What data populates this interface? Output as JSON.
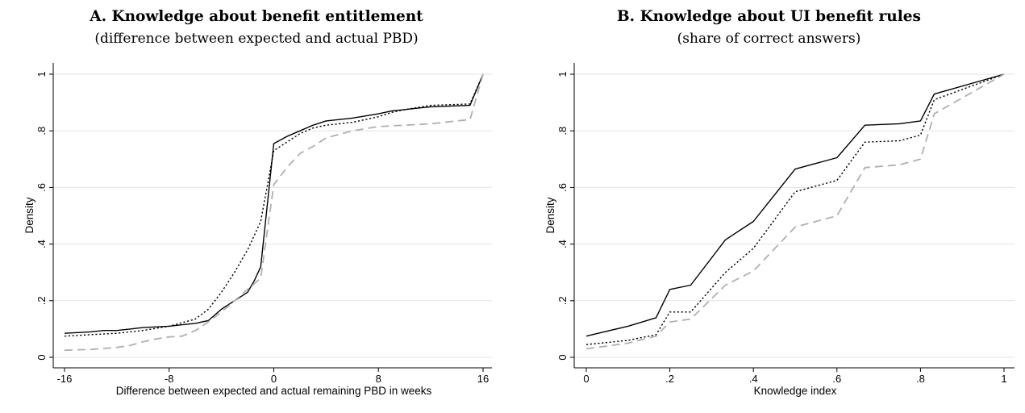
{
  "chart_data": [
    {
      "type": "line",
      "title": "A. Knowledge about benefit entitlement",
      "subtitle": "(difference between expected and actual PBD)",
      "xlabel": "Difference between expected and actual remaining PBD in weeks",
      "ylabel": "Density",
      "xlim": [
        -16,
        16
      ],
      "ylim": [
        0,
        1
      ],
      "xticks": [
        -16,
        -8,
        0,
        8,
        16
      ],
      "xtick_labels": [
        "-16",
        "-8",
        "0",
        "8",
        "16"
      ],
      "yticks": [
        0,
        0.2,
        0.4,
        0.6,
        0.8,
        1
      ],
      "ytick_labels": [
        "0",
        ".2",
        ".4",
        ".6",
        ".8",
        "1"
      ],
      "grid": true,
      "series": [
        {
          "style": "solid",
          "color": "#000000",
          "points": [
            [
              -16,
              0.085
            ],
            [
              -14,
              0.09
            ],
            [
              -13,
              0.095
            ],
            [
              -12,
              0.095
            ],
            [
              -11,
              0.1
            ],
            [
              -10,
              0.105
            ],
            [
              -8,
              0.11
            ],
            [
              -7,
              0.115
            ],
            [
              -6,
              0.12
            ],
            [
              -5,
              0.13
            ],
            [
              -4,
              0.17
            ],
            [
              -3,
              0.2
            ],
            [
              -2,
              0.23
            ],
            [
              -1.5,
              0.27
            ],
            [
              -1,
              0.32
            ],
            [
              0,
              0.755
            ],
            [
              1,
              0.78
            ],
            [
              2,
              0.8
            ],
            [
              3,
              0.82
            ],
            [
              4,
              0.835
            ],
            [
              6,
              0.845
            ],
            [
              8,
              0.86
            ],
            [
              9,
              0.87
            ],
            [
              10,
              0.875
            ],
            [
              11,
              0.88
            ],
            [
              12,
              0.885
            ],
            [
              15,
              0.89
            ],
            [
              16,
              1.0
            ]
          ]
        },
        {
          "style": "dotted",
          "color": "#000000",
          "points": [
            [
              -16,
              0.075
            ],
            [
              -14,
              0.08
            ],
            [
              -12,
              0.085
            ],
            [
              -10,
              0.095
            ],
            [
              -8,
              0.11
            ],
            [
              -6,
              0.135
            ],
            [
              -5,
              0.17
            ],
            [
              -4,
              0.23
            ],
            [
              -3,
              0.3
            ],
            [
              -2,
              0.38
            ],
            [
              -1,
              0.48
            ],
            [
              0,
              0.73
            ],
            [
              1,
              0.76
            ],
            [
              2,
              0.79
            ],
            [
              3,
              0.81
            ],
            [
              4,
              0.82
            ],
            [
              6,
              0.83
            ],
            [
              8,
              0.85
            ],
            [
              9,
              0.865
            ],
            [
              10,
              0.875
            ],
            [
              12,
              0.89
            ],
            [
              15,
              0.895
            ],
            [
              16,
              1.0
            ]
          ]
        },
        {
          "style": "dashed",
          "color": "#b0b0b0",
          "points": [
            [
              -16,
              0.025
            ],
            [
              -14,
              0.028
            ],
            [
              -12,
              0.035
            ],
            [
              -11,
              0.042
            ],
            [
              -10,
              0.055
            ],
            [
              -9,
              0.065
            ],
            [
              -8,
              0.072
            ],
            [
              -7,
              0.075
            ],
            [
              -6,
              0.095
            ],
            [
              -5,
              0.125
            ],
            [
              -4,
              0.16
            ],
            [
              -3,
              0.2
            ],
            [
              -2,
              0.24
            ],
            [
              -1,
              0.28
            ],
            [
              0,
              0.61
            ],
            [
              1,
              0.67
            ],
            [
              2,
              0.72
            ],
            [
              3,
              0.745
            ],
            [
              4,
              0.775
            ],
            [
              6,
              0.8
            ],
            [
              8,
              0.815
            ],
            [
              10,
              0.82
            ],
            [
              12,
              0.825
            ],
            [
              14,
              0.835
            ],
            [
              15,
              0.84
            ],
            [
              16,
              1.0
            ]
          ]
        }
      ]
    },
    {
      "type": "line",
      "title": "B. Knowledge about UI benefit rules",
      "subtitle": "(share of correct answers)",
      "xlabel": "Knowledge index",
      "ylabel": "Density",
      "xlim": [
        0,
        1
      ],
      "ylim": [
        0,
        1
      ],
      "xticks": [
        0,
        0.2,
        0.4,
        0.6,
        0.8,
        1
      ],
      "xtick_labels": [
        "0",
        ".2",
        ".4",
        ".6",
        ".8",
        "1"
      ],
      "yticks": [
        0,
        0.2,
        0.4,
        0.6,
        0.8,
        1
      ],
      "ytick_labels": [
        "0",
        ".2",
        ".4",
        ".6",
        ".8",
        "1"
      ],
      "grid": true,
      "series": [
        {
          "style": "solid",
          "color": "#000000",
          "points": [
            [
              0,
              0.075
            ],
            [
              0.1,
              0.11
            ],
            [
              0.167,
              0.14
            ],
            [
              0.2,
              0.24
            ],
            [
              0.25,
              0.255
            ],
            [
              0.333,
              0.415
            ],
            [
              0.4,
              0.48
            ],
            [
              0.5,
              0.665
            ],
            [
              0.6,
              0.705
            ],
            [
              0.667,
              0.82
            ],
            [
              0.75,
              0.825
            ],
            [
              0.8,
              0.835
            ],
            [
              0.833,
              0.93
            ],
            [
              1,
              1.0
            ]
          ]
        },
        {
          "style": "dotted",
          "color": "#000000",
          "points": [
            [
              0,
              0.045
            ],
            [
              0.1,
              0.06
            ],
            [
              0.167,
              0.08
            ],
            [
              0.2,
              0.16
            ],
            [
              0.25,
              0.16
            ],
            [
              0.333,
              0.3
            ],
            [
              0.4,
              0.385
            ],
            [
              0.5,
              0.585
            ],
            [
              0.6,
              0.625
            ],
            [
              0.667,
              0.76
            ],
            [
              0.75,
              0.765
            ],
            [
              0.8,
              0.785
            ],
            [
              0.833,
              0.91
            ],
            [
              1,
              1.0
            ]
          ]
        },
        {
          "style": "dashed",
          "color": "#b0b0b0",
          "points": [
            [
              0,
              0.03
            ],
            [
              0.1,
              0.05
            ],
            [
              0.167,
              0.075
            ],
            [
              0.2,
              0.125
            ],
            [
              0.25,
              0.135
            ],
            [
              0.333,
              0.255
            ],
            [
              0.4,
              0.305
            ],
            [
              0.5,
              0.46
            ],
            [
              0.6,
              0.5
            ],
            [
              0.667,
              0.67
            ],
            [
              0.75,
              0.68
            ],
            [
              0.8,
              0.7
            ],
            [
              0.833,
              0.86
            ],
            [
              1,
              1.0
            ]
          ]
        }
      ]
    }
  ]
}
